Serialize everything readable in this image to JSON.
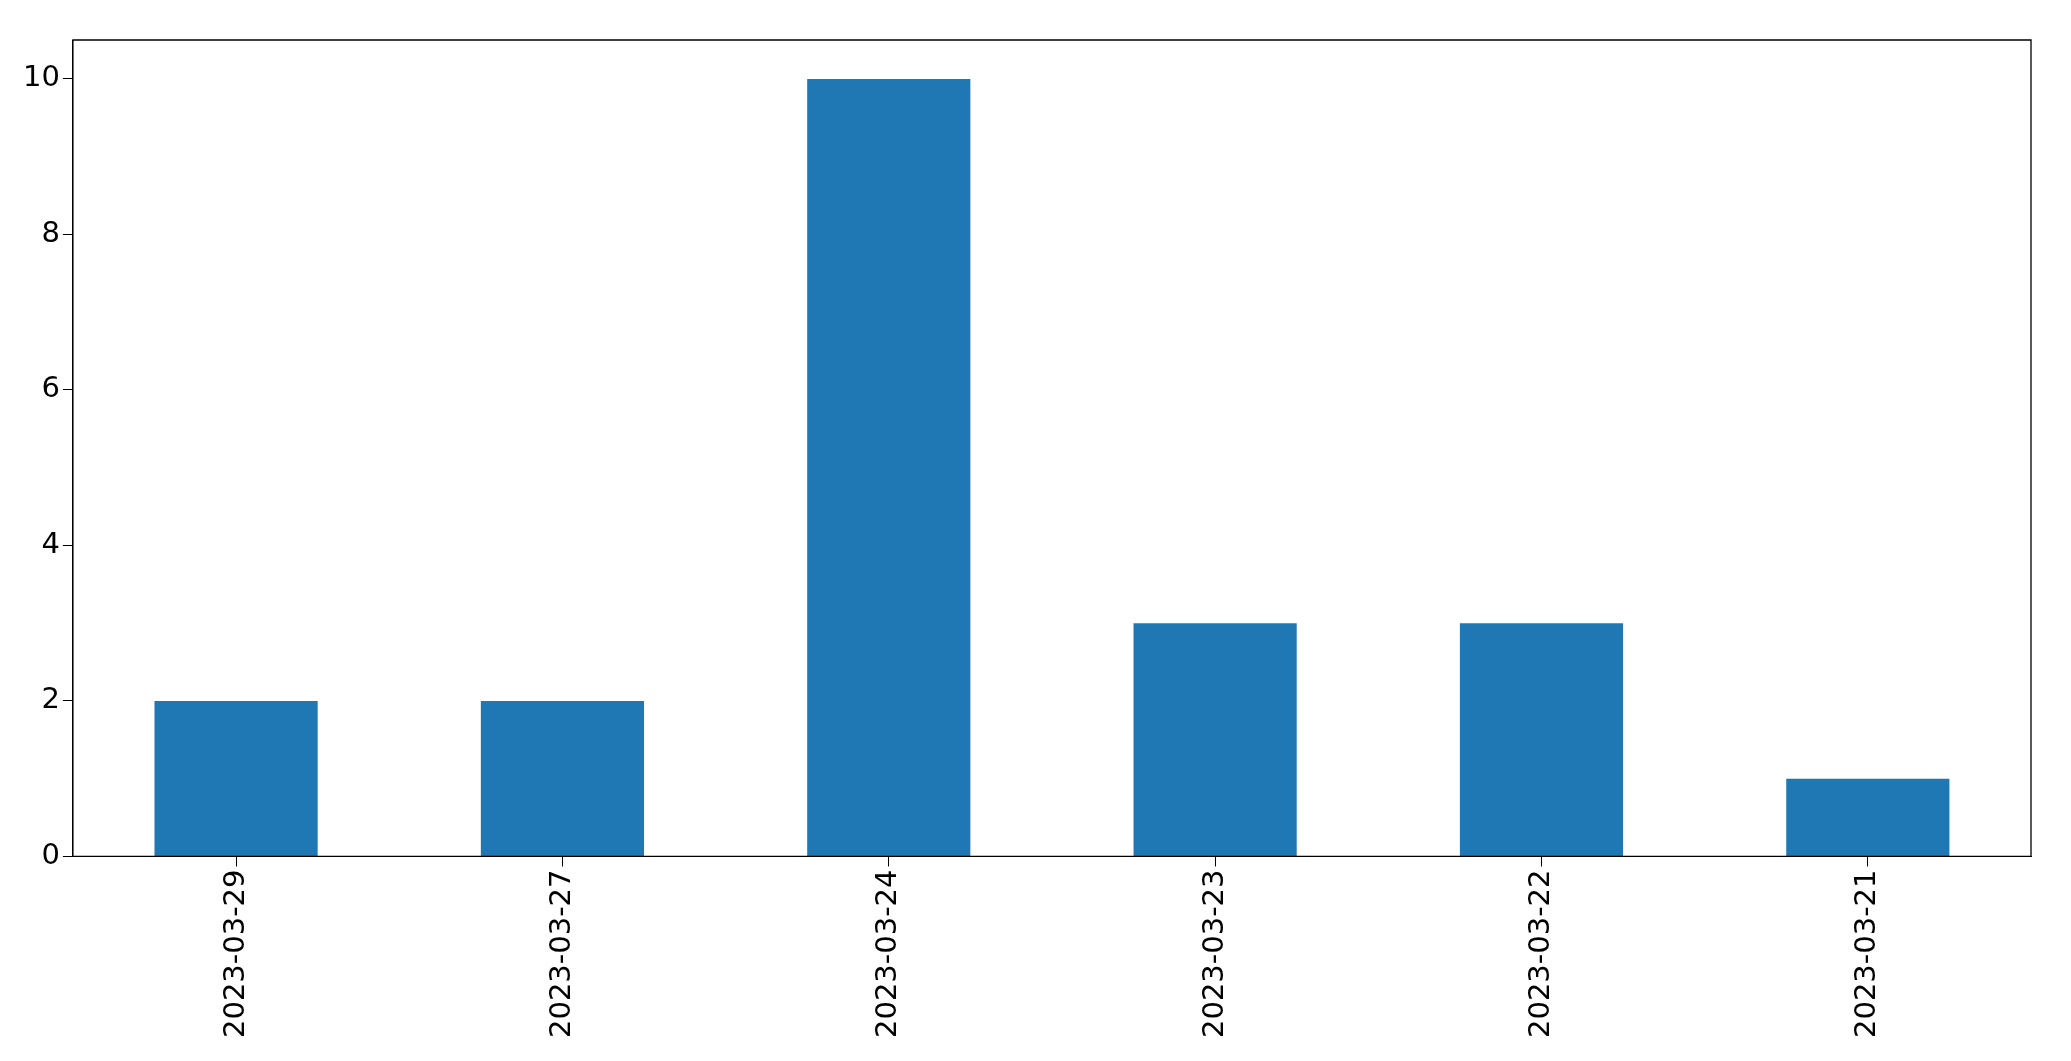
{
  "chart_data": {
    "type": "bar",
    "categories": [
      "2023-03-29",
      "2023-03-27",
      "2023-03-24",
      "2023-03-23",
      "2023-03-22",
      "2023-03-21"
    ],
    "values": [
      2,
      2,
      10,
      3,
      3,
      1
    ],
    "color": "#1f77b4",
    "ylim": [
      0,
      10.5
    ],
    "yticks": [
      0,
      2,
      4,
      6,
      8,
      10
    ]
  }
}
